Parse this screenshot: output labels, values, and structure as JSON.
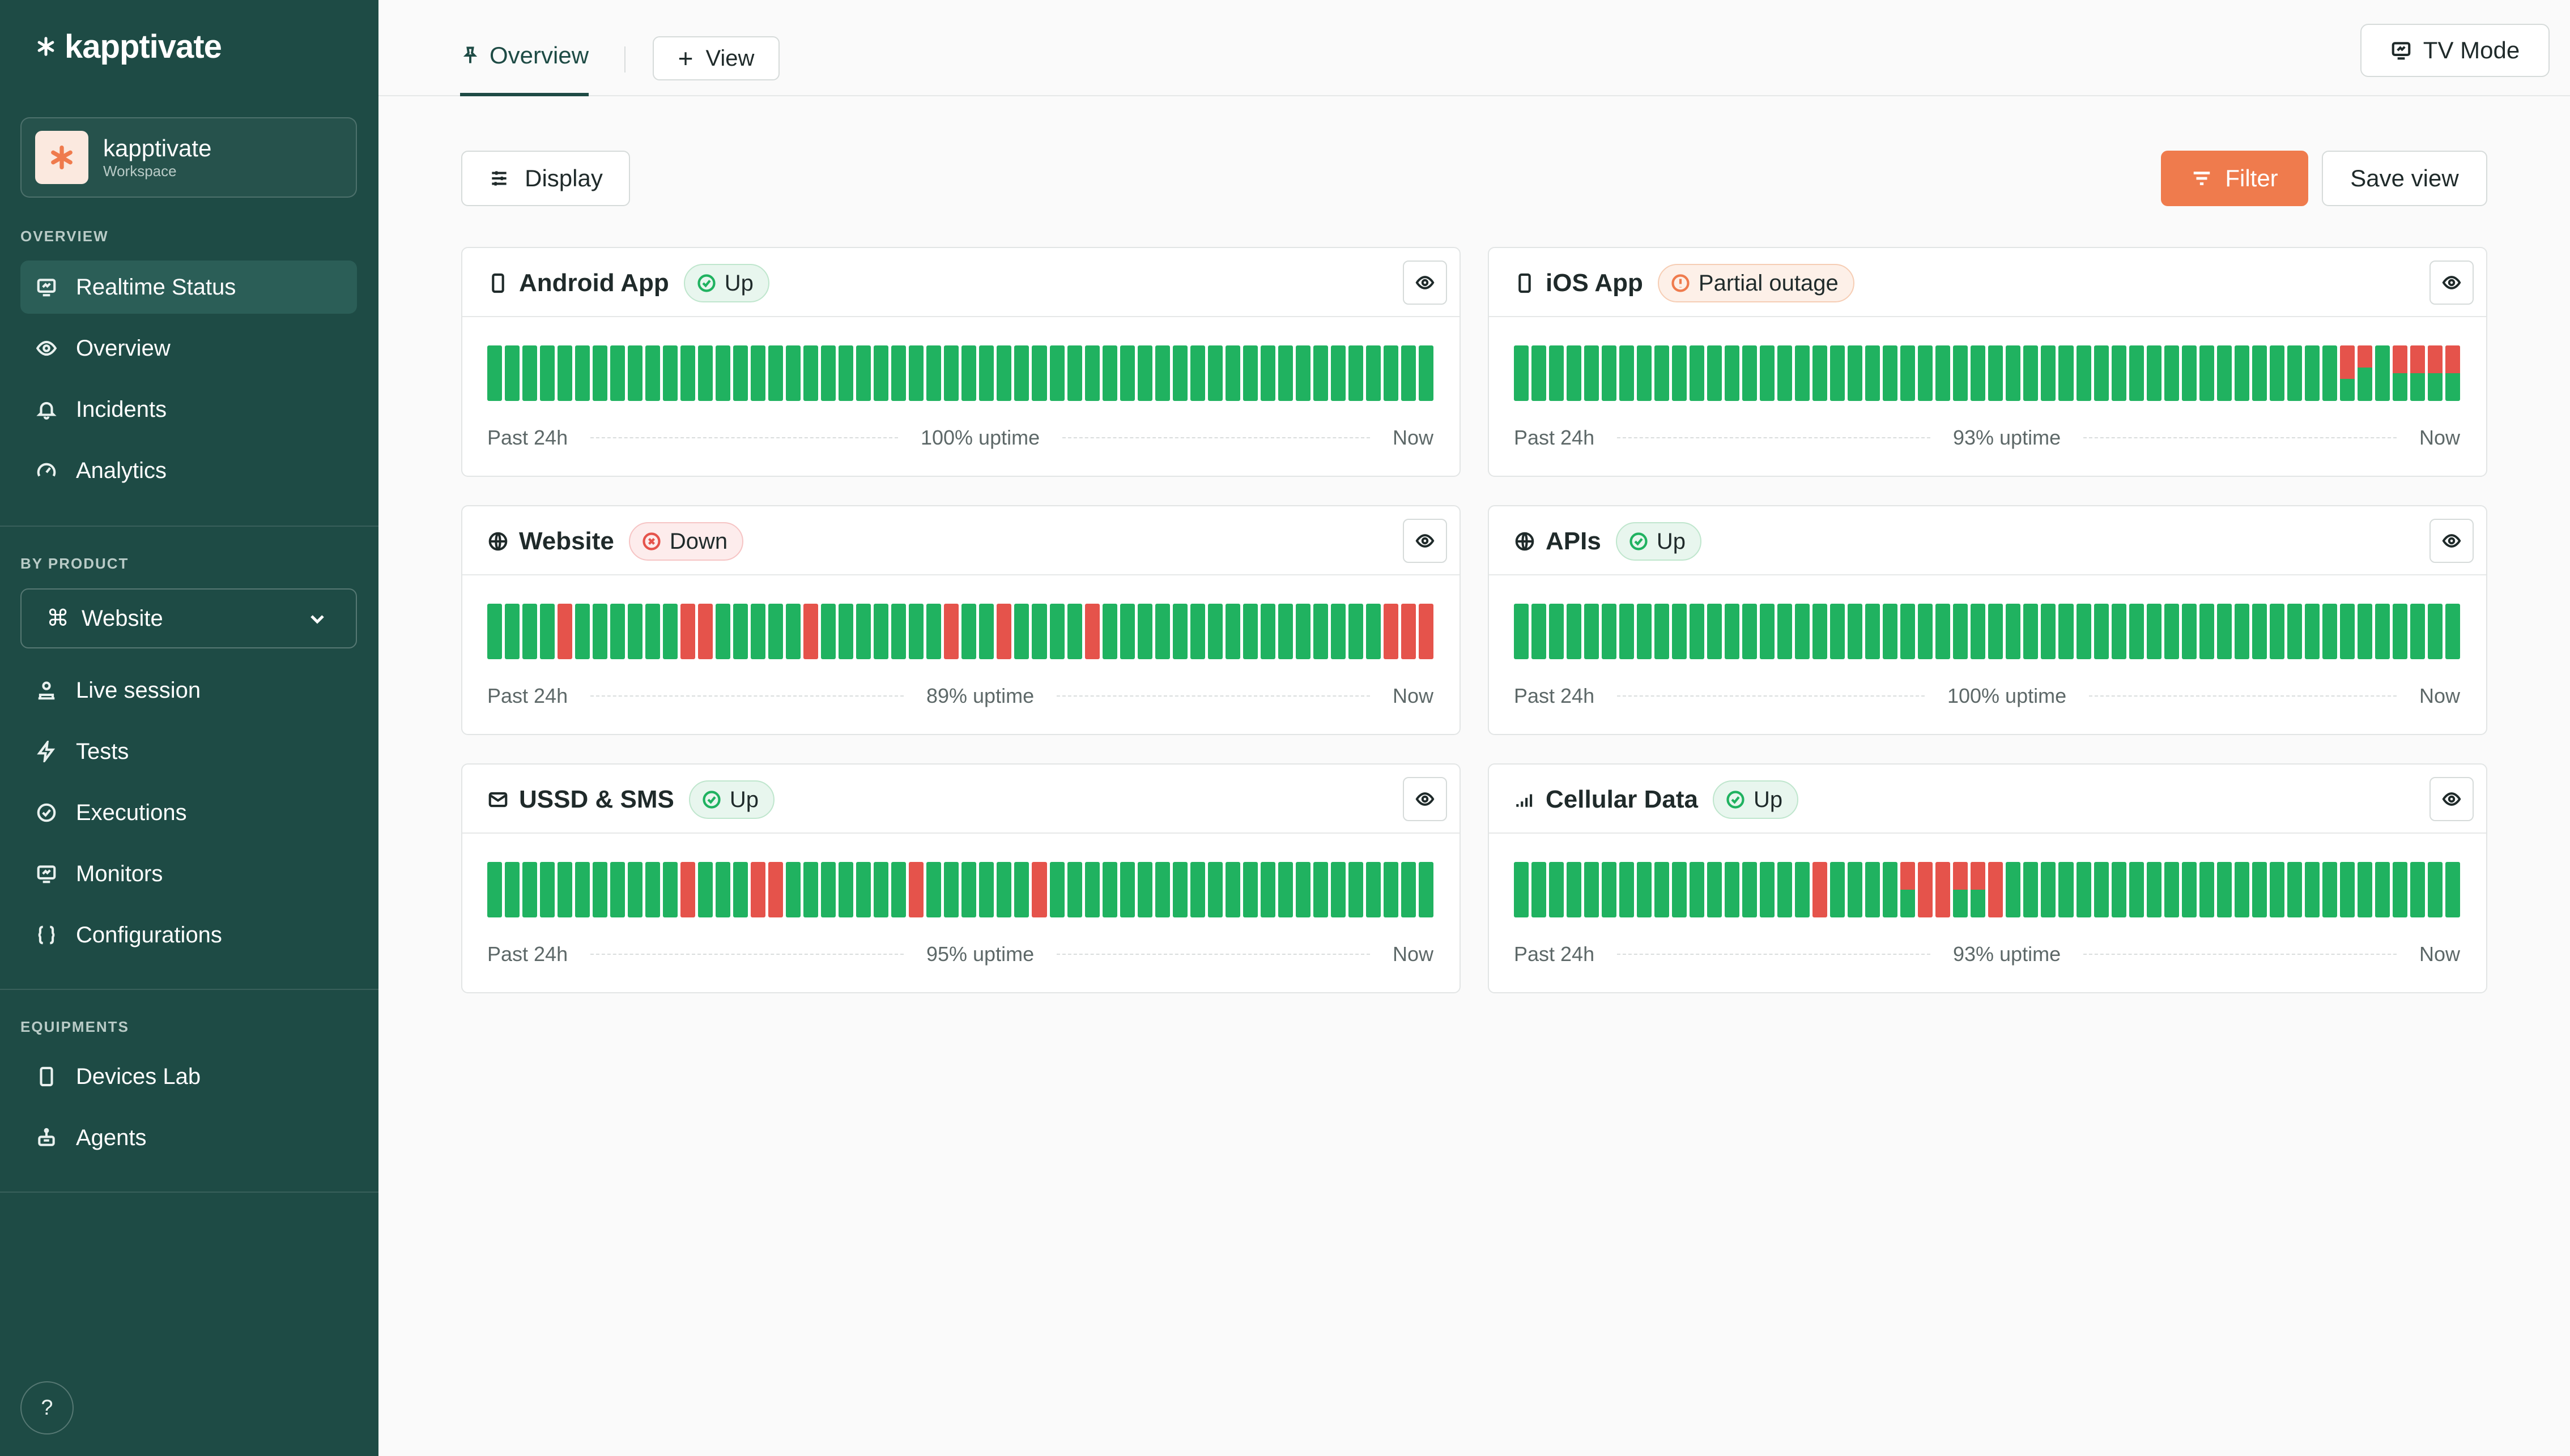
{
  "brand": {
    "name": "kapptivate"
  },
  "workspace": {
    "name": "kapptivate",
    "subtitle": "Workspace"
  },
  "sidebar": {
    "sections": {
      "overview": "OVERVIEW",
      "by_product": "BY PRODUCT",
      "equipments": "EQUIPMENTS"
    },
    "overview_items": [
      {
        "label": "Realtime Status",
        "icon": "monitor-icon",
        "active": true
      },
      {
        "label": "Overview",
        "icon": "eye-icon"
      },
      {
        "label": "Incidents",
        "icon": "bell-icon"
      },
      {
        "label": "Analytics",
        "icon": "gauge-icon"
      }
    ],
    "product_select": {
      "value": "Website",
      "icon": "command-icon"
    },
    "product_items": [
      {
        "label": "Live session",
        "icon": "person-icon"
      },
      {
        "label": "Tests",
        "icon": "bolt-icon"
      },
      {
        "label": "Executions",
        "icon": "check-circle-icon"
      },
      {
        "label": "Monitors",
        "icon": "monitor-icon"
      },
      {
        "label": "Configurations",
        "icon": "braces-icon"
      }
    ],
    "equipment_items": [
      {
        "label": "Devices Lab",
        "icon": "phone-icon"
      },
      {
        "label": "Agents",
        "icon": "robot-icon"
      }
    ],
    "help": "?"
  },
  "topbar": {
    "tab_overview": "Overview",
    "view_button": "View",
    "tv_mode_button": "TV Mode"
  },
  "toolbar": {
    "display_button": "Display",
    "filter_button": "Filter",
    "save_view_button": "Save view"
  },
  "colors": {
    "sidebar": "#1e4b45",
    "accent": "#ef7b4d",
    "up": "#20b260",
    "down": "#e5534b"
  },
  "cards": [
    {
      "name": "Android App",
      "icon": "phone-icon",
      "status": "Up",
      "status_kind": "up",
      "uptime": "100% uptime",
      "left_label": "Past 24h",
      "right_label": "Now",
      "bars": [
        0,
        0,
        0,
        0,
        0,
        0,
        0,
        0,
        0,
        0,
        0,
        0,
        0,
        0,
        0,
        0,
        0,
        0,
        0,
        0,
        0,
        0,
        0,
        0,
        0,
        0,
        0,
        0,
        0,
        0,
        0,
        0,
        0,
        0,
        0,
        0,
        0,
        0,
        0,
        0,
        0,
        0,
        0,
        0,
        0,
        0,
        0,
        0,
        0,
        0,
        0,
        0,
        0,
        0
      ]
    },
    {
      "name": "iOS App",
      "icon": "phone-icon",
      "status": "Partial outage",
      "status_kind": "partial",
      "uptime": "93% uptime",
      "left_label": "Past 24h",
      "right_label": "Now",
      "bars": [
        0,
        0,
        0,
        0,
        0,
        0,
        0,
        0,
        0,
        0,
        0,
        0,
        0,
        0,
        0,
        0,
        0,
        0,
        0,
        0,
        0,
        0,
        0,
        0,
        0,
        0,
        0,
        0,
        0,
        0,
        0,
        0,
        0,
        0,
        0,
        0,
        0,
        0,
        0,
        0,
        0,
        0,
        0,
        0,
        0,
        0,
        0,
        0.6,
        0.4,
        0,
        0.5,
        0.5,
        0.5,
        0.5
      ]
    },
    {
      "name": "Website",
      "icon": "globe-icon",
      "status": "Down",
      "status_kind": "down",
      "uptime": "89% uptime",
      "left_label": "Past 24h",
      "right_label": "Now",
      "bars": [
        0,
        0,
        0,
        0,
        1,
        0,
        0,
        0,
        0,
        0,
        0,
        1,
        1,
        0,
        0,
        0,
        0,
        0,
        1,
        0,
        0,
        0,
        0,
        0,
        0,
        0,
        1,
        0,
        0,
        1,
        0,
        0,
        0,
        0,
        1,
        0,
        0,
        0,
        0,
        0,
        0,
        0,
        0,
        0,
        0,
        0,
        0,
        0,
        0,
        0,
        0,
        1,
        1,
        1
      ]
    },
    {
      "name": "APIs",
      "icon": "globe-icon",
      "status": "Up",
      "status_kind": "up",
      "uptime": "100% uptime",
      "left_label": "Past 24h",
      "right_label": "Now",
      "bars": [
        0,
        0,
        0,
        0,
        0,
        0,
        0,
        0,
        0,
        0,
        0,
        0,
        0,
        0,
        0,
        0,
        0,
        0,
        0,
        0,
        0,
        0,
        0,
        0,
        0,
        0,
        0,
        0,
        0,
        0,
        0,
        0,
        0,
        0,
        0,
        0,
        0,
        0,
        0,
        0,
        0,
        0,
        0,
        0,
        0,
        0,
        0,
        0,
        0,
        0,
        0,
        0,
        0,
        0
      ]
    },
    {
      "name": "USSD & SMS",
      "icon": "mail-icon",
      "status": "Up",
      "status_kind": "up",
      "uptime": "95% uptime",
      "left_label": "Past 24h",
      "right_label": "Now",
      "bars": [
        0,
        0,
        0,
        0,
        0,
        0,
        0,
        0,
        0,
        0,
        0,
        1,
        0,
        0,
        0,
        1,
        1,
        0,
        0,
        0,
        0,
        0,
        0,
        0,
        1,
        0,
        0,
        0,
        0,
        0,
        0,
        1,
        0,
        0,
        0,
        0,
        0,
        0,
        0,
        0,
        0,
        0,
        0,
        0,
        0,
        0,
        0,
        0,
        0,
        0,
        0,
        0,
        0,
        0
      ]
    },
    {
      "name": "Cellular Data",
      "icon": "signal-icon",
      "status": "Up",
      "status_kind": "up",
      "uptime": "93% uptime",
      "left_label": "Past 24h",
      "right_label": "Now",
      "bars": [
        0,
        0,
        0,
        0,
        0,
        0,
        0,
        0,
        0,
        0,
        0,
        0,
        0,
        0,
        0,
        0,
        0,
        1,
        0,
        0,
        0,
        0,
        0.5,
        1,
        1,
        0.5,
        0.5,
        1,
        0,
        0,
        0,
        0,
        0,
        0,
        0,
        0,
        0,
        0,
        0,
        0,
        0,
        0,
        0,
        0,
        0,
        0,
        0,
        0,
        0,
        0,
        0,
        0,
        0,
        0
      ]
    }
  ]
}
